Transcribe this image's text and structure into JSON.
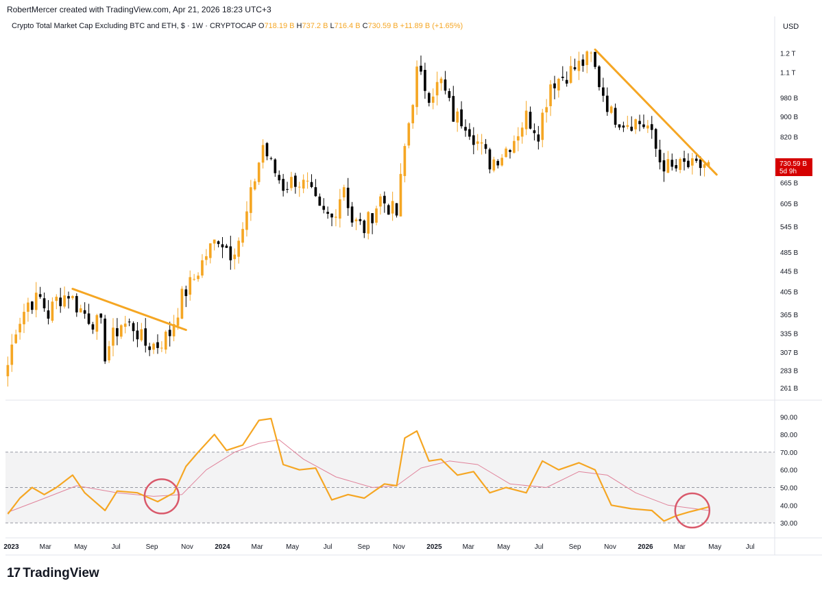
{
  "header": {
    "credit": "RobertMercer created with TradingView.com, Apr 21, 2026 18:23 UTC+3",
    "title": "Crypto Total Market Cap Excluding BTC and ETH, $ · 1W · CRYPTOCAP",
    "open_label": "O",
    "open_value": "718.19 B",
    "high_label": "H",
    "high_value": "737.2 B",
    "low_label": "L",
    "low_value": "716.4 B",
    "close_label": "C",
    "close_value": "730.59 B",
    "change": "+11.89 B (+1.65%)",
    "currency": "USD"
  },
  "price_tag": {
    "value": "730.59 B",
    "countdown": "5d 9h"
  },
  "brand": {
    "logo": "17",
    "name": "TradingView"
  },
  "colors": {
    "up": "#f5a623",
    "down": "#000000",
    "trendline": "#f5a623",
    "rsi": "#f5a623",
    "rsi_ma": "#e0829a",
    "circle": "#d9596b",
    "price_tag": "#d50000"
  },
  "chart_data": [
    {
      "type": "candlestick",
      "title": "Crypto Total Market Cap Excluding BTC and ETH, $ · 1W · CRYPTOCAP",
      "interval": "1W",
      "y_scale": "log",
      "ylim": [
        250,
        1260
      ],
      "xlim": [
        "2022-12-22",
        "2026-08-10"
      ],
      "y_tick_labels": [
        "1.2 T",
        "1.1 T",
        "980 B",
        "900 B",
        "820 B",
        "665 B",
        "605 B",
        "545 B",
        "485 B",
        "445 B",
        "405 B",
        "365 B",
        "335 B",
        "307 B",
        "283 B",
        "261 B"
      ],
      "y_ticks": [
        1200,
        1100,
        980,
        900,
        820,
        665,
        605,
        545,
        485,
        445,
        405,
        365,
        335,
        307,
        283,
        261
      ],
      "x_tick_labels": [
        "2023",
        "Mar",
        "May",
        "Jul",
        "Sep",
        "Nov",
        "2024",
        "Mar",
        "May",
        "Jul",
        "Sep",
        "Nov",
        "2025",
        "Mar",
        "May",
        "Jul",
        "Sep",
        "Nov",
        "2026",
        "Mar",
        "May",
        "Jul"
      ],
      "x_tick_dates": [
        "2023-01-01",
        "2023-03-01",
        "2023-05-01",
        "2023-07-01",
        "2023-09-01",
        "2023-11-01",
        "2024-01-01",
        "2024-03-01",
        "2024-05-01",
        "2024-07-01",
        "2024-09-01",
        "2024-11-01",
        "2025-01-01",
        "2025-03-01",
        "2025-05-01",
        "2025-07-01",
        "2025-09-01",
        "2025-11-01",
        "2026-01-01",
        "2026-03-01",
        "2026-05-01",
        "2026-07-01"
      ],
      "bold_x_labels": [
        "2023",
        "2024",
        "2025",
        "2026"
      ],
      "weekly_close_path": [
        {
          "d": "2022-12-26",
          "c": 290
        },
        {
          "d": "2023-01-09",
          "c": 345
        },
        {
          "d": "2023-01-30",
          "c": 385
        },
        {
          "d": "2023-02-20",
          "c": 392
        },
        {
          "d": "2023-03-06",
          "c": 365
        },
        {
          "d": "2023-03-20",
          "c": 390
        },
        {
          "d": "2023-04-10",
          "c": 402
        },
        {
          "d": "2023-04-24",
          "c": 380
        },
        {
          "d": "2023-05-15",
          "c": 360
        },
        {
          "d": "2023-06-05",
          "c": 345
        },
        {
          "d": "2023-06-12",
          "c": 305
        },
        {
          "d": "2023-06-26",
          "c": 330
        },
        {
          "d": "2023-07-10",
          "c": 350
        },
        {
          "d": "2023-07-31",
          "c": 345
        },
        {
          "d": "2023-08-21",
          "c": 318
        },
        {
          "d": "2023-09-11",
          "c": 318
        },
        {
          "d": "2023-10-02",
          "c": 335
        },
        {
          "d": "2023-10-23",
          "c": 395
        },
        {
          "d": "2023-11-13",
          "c": 430
        },
        {
          "d": "2023-12-04",
          "c": 480
        },
        {
          "d": "2023-12-25",
          "c": 520
        },
        {
          "d": "2024-01-15",
          "c": 485
        },
        {
          "d": "2024-02-05",
          "c": 530
        },
        {
          "d": "2024-02-26",
          "c": 680
        },
        {
          "d": "2024-03-11",
          "c": 790
        },
        {
          "d": "2024-03-25",
          "c": 720
        },
        {
          "d": "2024-04-15",
          "c": 655
        },
        {
          "d": "2024-05-06",
          "c": 675
        },
        {
          "d": "2024-05-27",
          "c": 650
        },
        {
          "d": "2024-06-17",
          "c": 580
        },
        {
          "d": "2024-07-08",
          "c": 565
        },
        {
          "d": "2024-07-29",
          "c": 660
        },
        {
          "d": "2024-08-12",
          "c": 560
        },
        {
          "d": "2024-09-02",
          "c": 540
        },
        {
          "d": "2024-09-30",
          "c": 620
        },
        {
          "d": "2024-10-28",
          "c": 575
        },
        {
          "d": "2024-11-11",
          "c": 780
        },
        {
          "d": "2024-12-02",
          "c": 1100
        },
        {
          "d": "2024-12-23",
          "c": 1000
        },
        {
          "d": "2025-01-13",
          "c": 1050
        },
        {
          "d": "2025-02-03",
          "c": 900
        },
        {
          "d": "2025-02-24",
          "c": 880
        },
        {
          "d": "2025-03-17",
          "c": 800
        },
        {
          "d": "2025-04-07",
          "c": 730
        },
        {
          "d": "2025-04-28",
          "c": 760
        },
        {
          "d": "2025-05-19",
          "c": 815
        },
        {
          "d": "2025-06-09",
          "c": 900
        },
        {
          "d": "2025-06-30",
          "c": 840
        },
        {
          "d": "2025-07-21",
          "c": 1050
        },
        {
          "d": "2025-08-11",
          "c": 1080
        },
        {
          "d": "2025-09-01",
          "c": 1120
        },
        {
          "d": "2025-09-29",
          "c": 1180
        },
        {
          "d": "2025-10-13",
          "c": 1050
        },
        {
          "d": "2025-11-03",
          "c": 910
        },
        {
          "d": "2025-11-24",
          "c": 880
        },
        {
          "d": "2025-12-15",
          "c": 880
        },
        {
          "d": "2026-01-05",
          "c": 860
        },
        {
          "d": "2026-01-26",
          "c": 735
        },
        {
          "d": "2026-02-16",
          "c": 705
        },
        {
          "d": "2026-03-09",
          "c": 720
        },
        {
          "d": "2026-03-30",
          "c": 710
        },
        {
          "d": "2026-04-20",
          "c": 730.59
        }
      ],
      "last_candle": {
        "d": "2026-04-20",
        "o": 718.19,
        "h": 737.2,
        "l": 716.4,
        "c": 730.59
      },
      "trendlines": [
        {
          "from": {
            "d": "2023-04-17",
            "v": 410
          },
          "to": {
            "d": "2023-10-30",
            "v": 340
          }
        },
        {
          "from": {
            "d": "2025-10-06",
            "v": 1220
          },
          "to": {
            "d": "2026-05-04",
            "v": 690
          }
        }
      ]
    },
    {
      "type": "line",
      "title": "",
      "ylim": [
        25,
        94
      ],
      "y_ticks": [
        30,
        40,
        50,
        60,
        70,
        80,
        90
      ],
      "y_tick_labels": [
        "30.00",
        "40.00",
        "50.00",
        "60.00",
        "70.00",
        "80.00",
        "90.00"
      ],
      "band": [
        30,
        70
      ],
      "dashed_levels": [
        30,
        50,
        70
      ],
      "series": [
        {
          "name": "",
          "role": "oscillator",
          "points": [
            {
              "d": "2022-12-26",
              "v": 35
            },
            {
              "d": "2023-01-16",
              "v": 44
            },
            {
              "d": "2023-02-06",
              "v": 50
            },
            {
              "d": "2023-02-27",
              "v": 46
            },
            {
              "d": "2023-03-20",
              "v": 50
            },
            {
              "d": "2023-04-17",
              "v": 57
            },
            {
              "d": "2023-05-08",
              "v": 47
            },
            {
              "d": "2023-06-12",
              "v": 37
            },
            {
              "d": "2023-07-03",
              "v": 48
            },
            {
              "d": "2023-08-07",
              "v": 47
            },
            {
              "d": "2023-09-11",
              "v": 42
            },
            {
              "d": "2023-10-09",
              "v": 47
            },
            {
              "d": "2023-10-30",
              "v": 62
            },
            {
              "d": "2023-11-20",
              "v": 70
            },
            {
              "d": "2023-12-18",
              "v": 80
            },
            {
              "d": "2024-01-08",
              "v": 71
            },
            {
              "d": "2024-02-05",
              "v": 74
            },
            {
              "d": "2024-03-04",
              "v": 88
            },
            {
              "d": "2024-03-25",
              "v": 89
            },
            {
              "d": "2024-04-15",
              "v": 63
            },
            {
              "d": "2024-05-13",
              "v": 60
            },
            {
              "d": "2024-06-10",
              "v": 61
            },
            {
              "d": "2024-07-08",
              "v": 43
            },
            {
              "d": "2024-08-05",
              "v": 46
            },
            {
              "d": "2024-09-02",
              "v": 44
            },
            {
              "d": "2024-10-07",
              "v": 52
            },
            {
              "d": "2024-10-28",
              "v": 51
            },
            {
              "d": "2024-11-11",
              "v": 78
            },
            {
              "d": "2024-12-02",
              "v": 82
            },
            {
              "d": "2024-12-23",
              "v": 65
            },
            {
              "d": "2025-01-13",
              "v": 66
            },
            {
              "d": "2025-02-10",
              "v": 57
            },
            {
              "d": "2025-03-10",
              "v": 59
            },
            {
              "d": "2025-04-07",
              "v": 47
            },
            {
              "d": "2025-05-05",
              "v": 50
            },
            {
              "d": "2025-06-09",
              "v": 47
            },
            {
              "d": "2025-07-07",
              "v": 65
            },
            {
              "d": "2025-08-04",
              "v": 60
            },
            {
              "d": "2025-09-08",
              "v": 64
            },
            {
              "d": "2025-10-06",
              "v": 60
            },
            {
              "d": "2025-11-03",
              "v": 40
            },
            {
              "d": "2025-12-08",
              "v": 38
            },
            {
              "d": "2026-01-12",
              "v": 37
            },
            {
              "d": "2026-02-02",
              "v": 31
            },
            {
              "d": "2026-02-23",
              "v": 34
            },
            {
              "d": "2026-03-16",
              "v": 36
            },
            {
              "d": "2026-04-20",
              "v": 39
            }
          ]
        },
        {
          "name": "",
          "role": "moving-average",
          "points": [
            {
              "d": "2022-12-26",
              "v": 36
            },
            {
              "d": "2023-02-20",
              "v": 43
            },
            {
              "d": "2023-04-24",
              "v": 51
            },
            {
              "d": "2023-07-03",
              "v": 47
            },
            {
              "d": "2023-09-04",
              "v": 45
            },
            {
              "d": "2023-10-23",
              "v": 46
            },
            {
              "d": "2023-12-04",
              "v": 60
            },
            {
              "d": "2024-01-22",
              "v": 70
            },
            {
              "d": "2024-03-04",
              "v": 75
            },
            {
              "d": "2024-04-08",
              "v": 77
            },
            {
              "d": "2024-05-20",
              "v": 66
            },
            {
              "d": "2024-07-15",
              "v": 56
            },
            {
              "d": "2024-09-16",
              "v": 50
            },
            {
              "d": "2024-10-28",
              "v": 51
            },
            {
              "d": "2024-12-09",
              "v": 61
            },
            {
              "d": "2025-01-27",
              "v": 65
            },
            {
              "d": "2025-03-17",
              "v": 63
            },
            {
              "d": "2025-05-12",
              "v": 52
            },
            {
              "d": "2025-07-14",
              "v": 50
            },
            {
              "d": "2025-09-08",
              "v": 59
            },
            {
              "d": "2025-10-27",
              "v": 57
            },
            {
              "d": "2025-12-15",
              "v": 47
            },
            {
              "d": "2026-02-09",
              "v": 40
            },
            {
              "d": "2026-04-20",
              "v": 37
            }
          ]
        }
      ],
      "circles": [
        {
          "d": "2023-09-18",
          "v": 45
        },
        {
          "d": "2026-03-23",
          "v": 37
        }
      ]
    }
  ]
}
